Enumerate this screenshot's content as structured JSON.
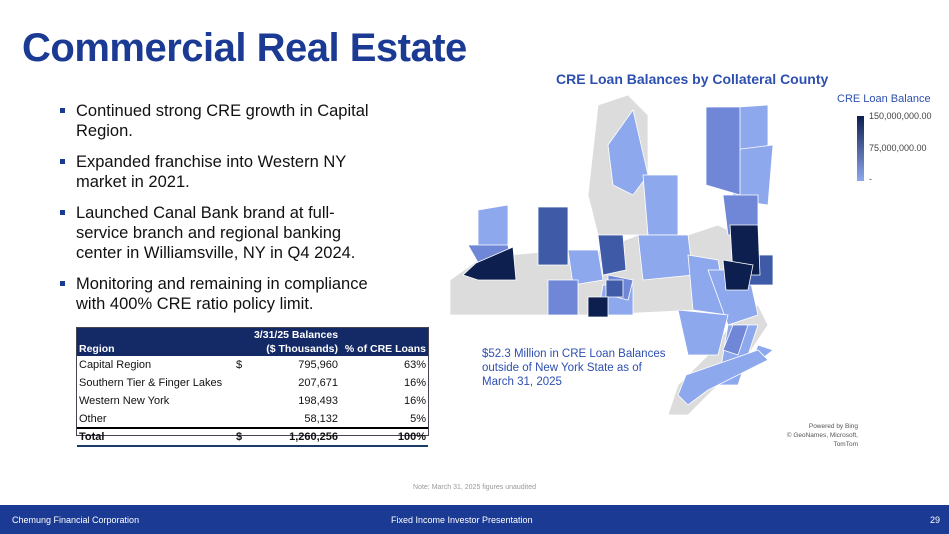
{
  "title": "Commercial Real Estate",
  "bullets": [
    "Continued strong CRE growth in Capital Region.",
    "Expanded franchise into Western NY market in 2021.",
    "Launched Canal Bank brand at full-service branch and regional banking center in  Williamsville, NY in Q4 2024.",
    "Monitoring and remaining in compliance with 400% CRE ratio policy limit."
  ],
  "table": {
    "headers": {
      "region": "Region",
      "balances_line1": "3/31/25 Balances",
      "balances_line2": "($ Thousands)",
      "pct": "% of CRE Loans"
    },
    "rows": [
      {
        "region": "Capital Region",
        "currency": "$",
        "balance": "795,960",
        "pct": "63%"
      },
      {
        "region": "Southern Tier & Finger Lakes",
        "currency": "",
        "balance": "207,671",
        "pct": "16%"
      },
      {
        "region": "Western New York",
        "currency": "",
        "balance": "198,493",
        "pct": "16%"
      },
      {
        "region": "Other",
        "currency": "",
        "balance": "58,132",
        "pct": "5%"
      }
    ],
    "total": {
      "region": "Total",
      "currency": "$",
      "balance": "1,260,256",
      "pct": "100%"
    }
  },
  "map": {
    "title": "CRE Loan Balances by Collateral County",
    "legend_title": "CRE Loan Balance",
    "legend_max": "150,000,000.00",
    "legend_mid": "75,000,000.00",
    "legend_min": "-",
    "note": "$52.3 Million in CRE Loan Balances outside of New York State as of March 31, 2025",
    "credit_line1": "Powered by Bing",
    "credit_line2": "© GeoNames, Microsoft, TomTom",
    "colors": {
      "dark": "#0d1f4f",
      "mid": "#3f5ba8",
      "light": "#8ea8ee",
      "none": "#dcdcdc"
    }
  },
  "footnote": "Note: March 31, 2025 figures unaudited",
  "footer": {
    "company": "Chemung Financial Corporation",
    "presentation": "Fixed Income Investor Presentation",
    "page": "29"
  }
}
